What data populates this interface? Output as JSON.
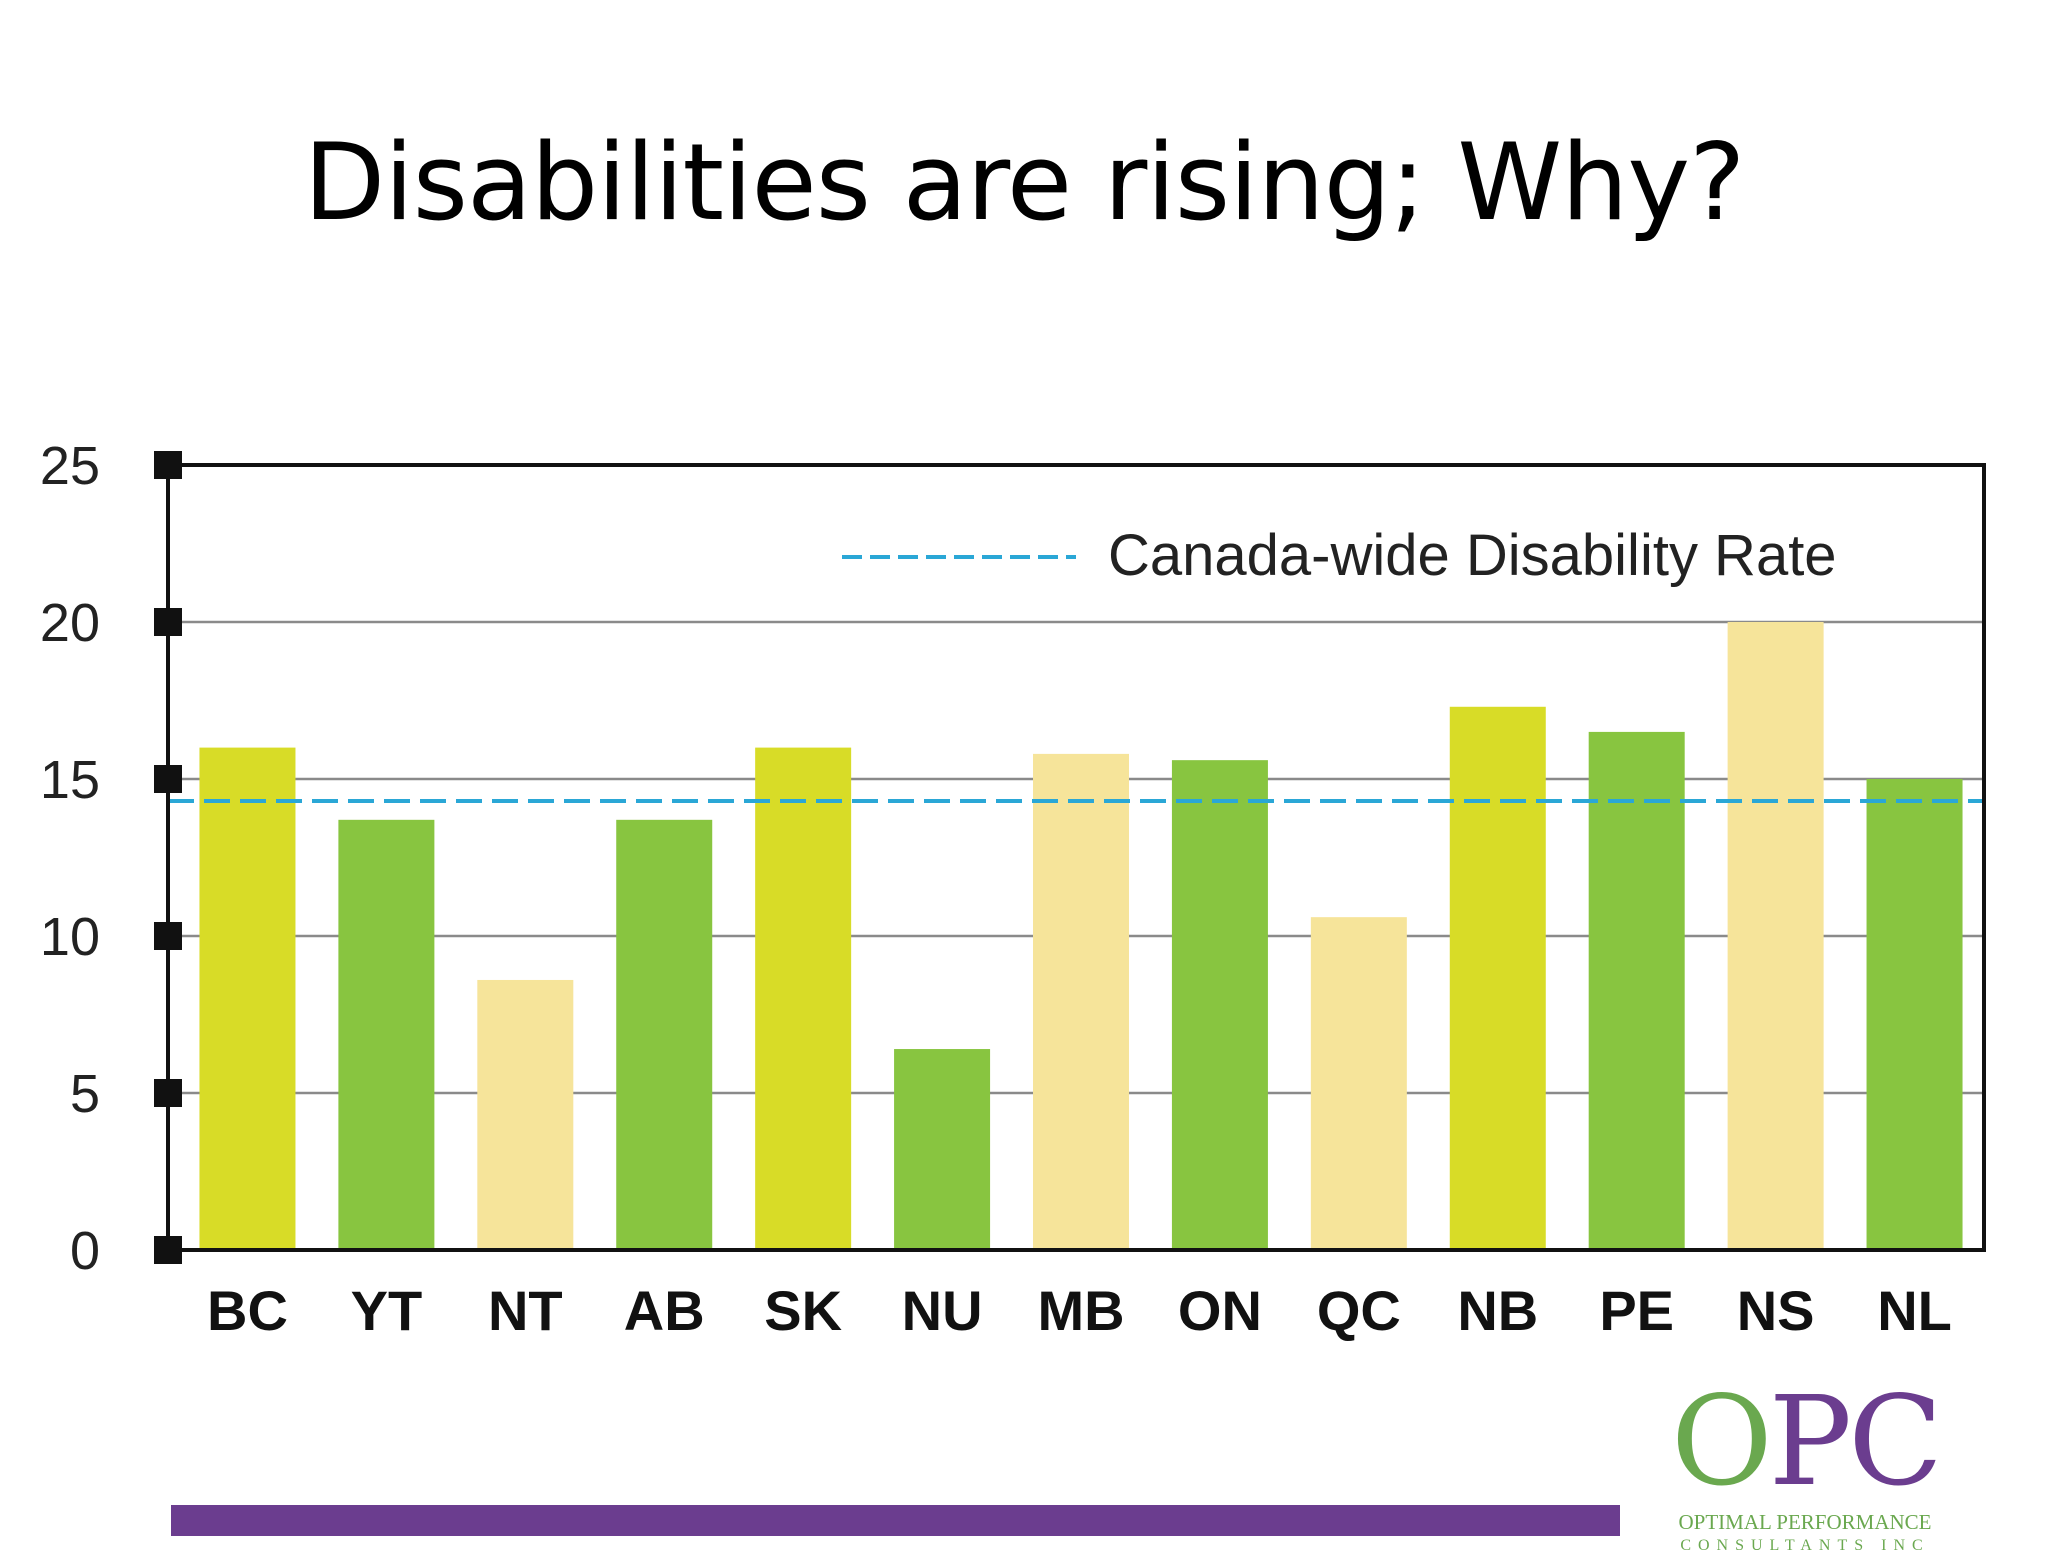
{
  "slide": {
    "title": "Disabilities are rising; Why?"
  },
  "chart_data": {
    "type": "bar",
    "categories": [
      "BC",
      "YT",
      "NT",
      "AB",
      "SK",
      "NU",
      "MB",
      "ON",
      "QC",
      "NB",
      "PE",
      "NS",
      "NL"
    ],
    "values": [
      16.0,
      13.7,
      8.6,
      13.7,
      16.0,
      6.4,
      15.8,
      15.6,
      10.6,
      17.3,
      16.5,
      20.0,
      15.0
    ],
    "bar_colors": [
      "#d8dc27",
      "#88c540",
      "#f6e49a",
      "#88c540",
      "#d8dc27",
      "#88c540",
      "#f6e49a",
      "#88c540",
      "#f6e49a",
      "#d8dc27",
      "#88c540",
      "#f6e49a",
      "#88c540"
    ],
    "ylim": [
      0,
      25
    ],
    "yticks": [
      0,
      5,
      10,
      15,
      20,
      25
    ],
    "gridlines": [
      5,
      10,
      15,
      20
    ],
    "grid": true,
    "reference_line": {
      "label": "Canada-wide Disability Rate",
      "value": 14.3,
      "color": "#2aa7d6",
      "style": "dashed"
    },
    "legend_placement": "top-right"
  },
  "logo": {
    "letter_o": "O",
    "letters_pc": "PC",
    "line1": "OPTIMAL PERFORMANCE",
    "line2": "CONSULTANTS INC",
    "color_green": "#6aa84f",
    "color_purple": "#6b3d8f"
  },
  "footer": {
    "band_color": "#6b3d8f"
  }
}
